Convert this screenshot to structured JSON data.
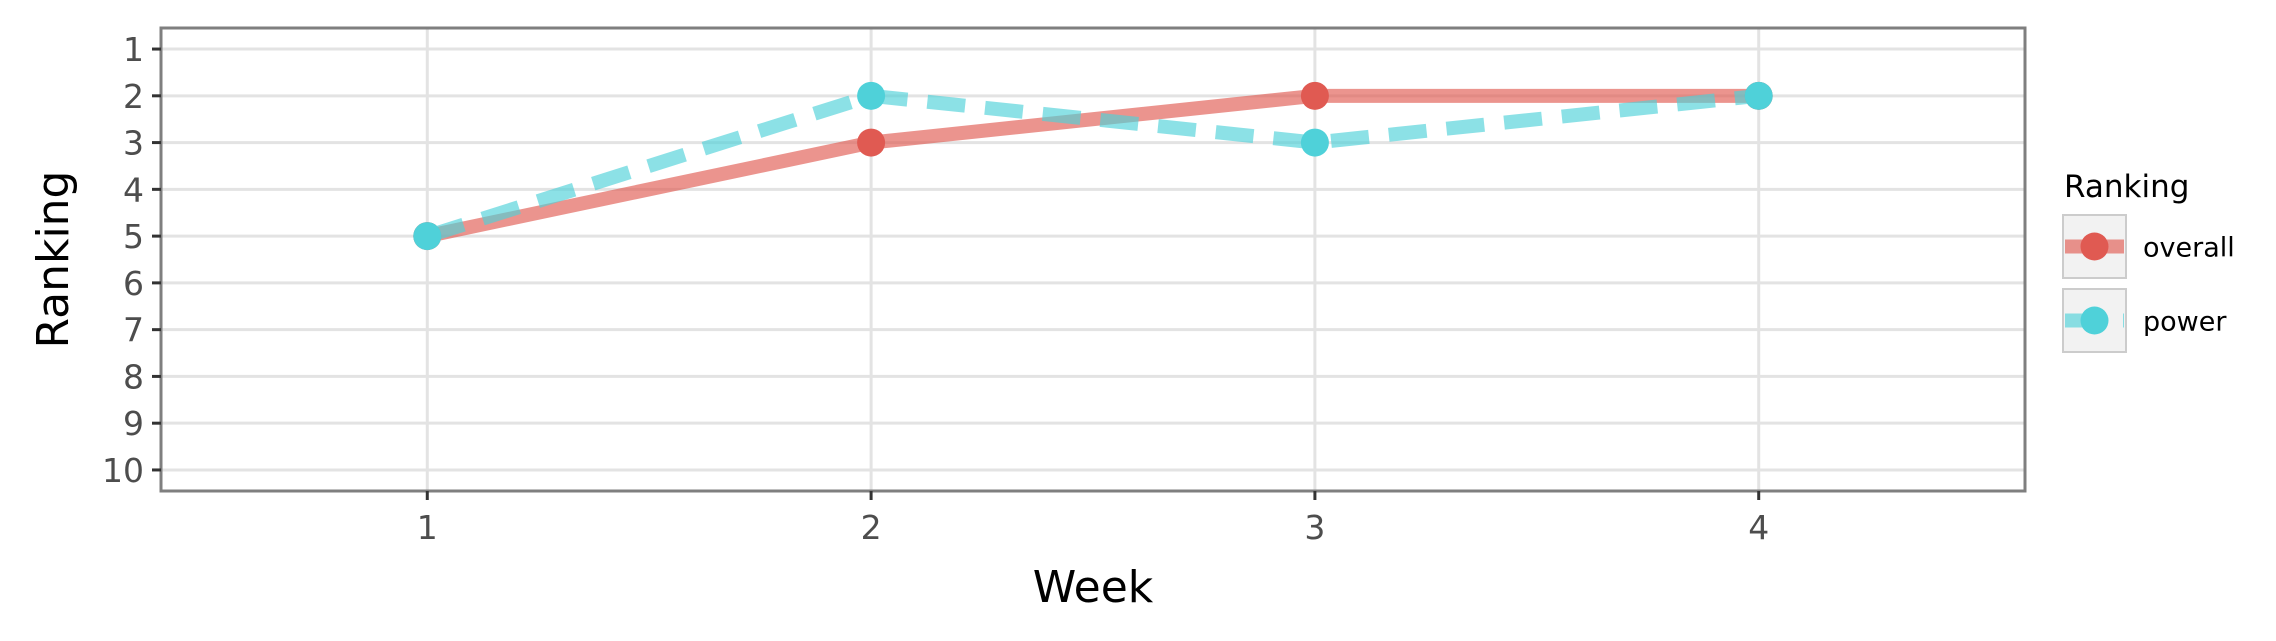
{
  "chart_data": {
    "type": "line",
    "title": "",
    "xlabel": "Week",
    "ylabel": "Ranking",
    "x": [
      1,
      2,
      3,
      4
    ],
    "x_ticks": [
      1,
      2,
      3,
      4
    ],
    "xlim": [
      0.4,
      4.6
    ],
    "y_ticks": [
      1,
      2,
      3,
      4,
      5,
      6,
      7,
      8,
      9,
      10
    ],
    "ylim": [
      0.55,
      10.45
    ],
    "y_reversed": true,
    "grid": true,
    "legend_title": "Ranking",
    "legend_position": "right",
    "series": [
      {
        "name": "overall",
        "values": [
          5,
          3,
          2,
          2
        ],
        "color": "#e05a52",
        "line_style": "solid"
      },
      {
        "name": "power",
        "values": [
          5,
          2,
          3,
          2
        ],
        "color": "#4fd1d9",
        "line_style": "dashed"
      }
    ]
  }
}
